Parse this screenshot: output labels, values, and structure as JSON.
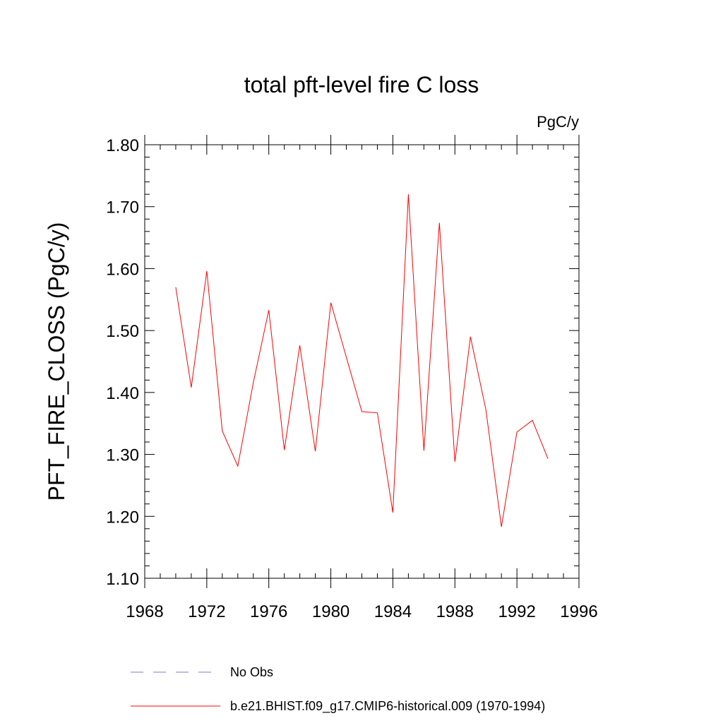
{
  "chart_data": {
    "type": "line",
    "title": "total pft-level fire C loss",
    "units": "PgC/y",
    "ylabel": "PFT_FIRE_CLOSS  (PgC/y)",
    "xlabel": "",
    "xlim": [
      1968,
      1996
    ],
    "ylim": [
      1.1,
      1.8
    ],
    "xticks": [
      1968,
      1972,
      1976,
      1980,
      1984,
      1988,
      1992,
      1996
    ],
    "yticks": [
      "1.10",
      "1.20",
      "1.30",
      "1.40",
      "1.50",
      "1.60",
      "1.70",
      "1.80"
    ],
    "series": [
      {
        "name": "b.e21.BHIST.f09_g17.CMIP6-historical.009 (1970-1994)",
        "color": "#ff0000",
        "style": "solid",
        "x": [
          1970,
          1971,
          1972,
          1973,
          1974,
          1975,
          1976,
          1977,
          1978,
          1979,
          1980,
          1981,
          1982,
          1983,
          1984,
          1985,
          1986,
          1987,
          1988,
          1989,
          1990,
          1991,
          1992,
          1993,
          1994
        ],
        "y": [
          1.57,
          1.408,
          1.596,
          1.338,
          1.281,
          1.416,
          1.533,
          1.307,
          1.476,
          1.305,
          1.545,
          1.457,
          1.369,
          1.367,
          1.206,
          1.72,
          1.306,
          1.674,
          1.288,
          1.49,
          1.372,
          1.183,
          1.336,
          1.355,
          1.293
        ]
      }
    ],
    "legend": [
      {
        "label": "No Obs",
        "color": "#7b7bd6",
        "style": "dashed"
      },
      {
        "label": "b.e21.BHIST.f09_g17.CMIP6-historical.009 (1970-1994)",
        "color": "#ff0000",
        "style": "solid"
      }
    ]
  }
}
